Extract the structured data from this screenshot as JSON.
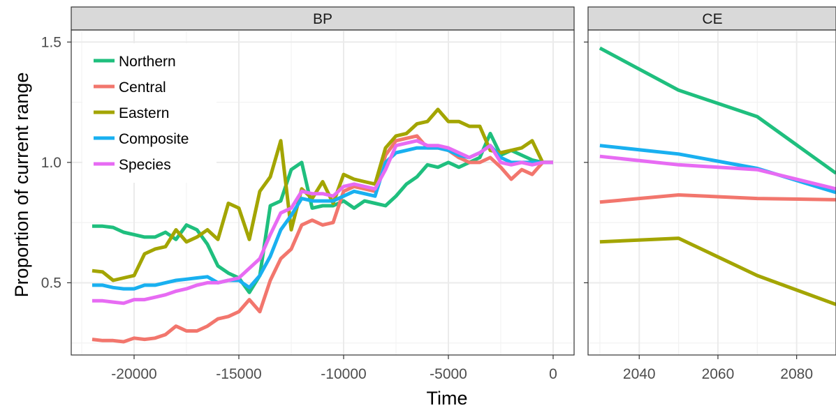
{
  "chart_data": {
    "type": "line",
    "xlabel": "Time",
    "ylabel": "Proportion of current range",
    "grid": true,
    "legend_position": "top-left",
    "y_ticks": [
      "0.5",
      "1.0",
      "1.5"
    ],
    "y_tick_values": [
      0.5,
      1.0,
      1.5
    ],
    "ylim": [
      0.2,
      1.55
    ],
    "series_names": [
      "Northern",
      "Central",
      "Eastern",
      "Composite",
      "Species"
    ],
    "colors": {
      "Northern": "#1FBF7E",
      "Central": "#F2766D",
      "Eastern": "#A3A500",
      "Composite": "#19B0F0",
      "Species": "#E76BF3"
    },
    "panels": [
      {
        "label": "BP",
        "xlim": [
          -23000,
          1000
        ],
        "x_ticks": [
          "-20000",
          "-15000",
          "-10000",
          "-5000",
          "0"
        ],
        "x_tick_values": [
          -20000,
          -15000,
          -10000,
          -5000,
          0
        ],
        "series": [
          {
            "name": "Northern",
            "x": [
              -22000,
              -21500,
              -21000,
              -20500,
              -20000,
              -19500,
              -19000,
              -18500,
              -18000,
              -17500,
              -17000,
              -16500,
              -16000,
              -15500,
              -15000,
              -14500,
              -14000,
              -13500,
              -13000,
              -12500,
              -12000,
              -11500,
              -11000,
              -10500,
              -10000,
              -9500,
              -9000,
              -8500,
              -8000,
              -7500,
              -7000,
              -6500,
              -6000,
              -5500,
              -5000,
              -4500,
              -4000,
              -3500,
              -3000,
              -2500,
              -2000,
              -1500,
              -1000,
              -500,
              0
            ],
            "y": [
              0.735,
              0.735,
              0.73,
              0.71,
              0.7,
              0.69,
              0.69,
              0.71,
              0.68,
              0.74,
              0.72,
              0.66,
              0.57,
              0.54,
              0.52,
              0.46,
              0.53,
              0.82,
              0.84,
              0.97,
              1.0,
              0.81,
              0.82,
              0.82,
              0.84,
              0.81,
              0.84,
              0.83,
              0.82,
              0.86,
              0.91,
              0.94,
              0.99,
              0.98,
              1.0,
              0.98,
              1.0,
              1.02,
              1.12,
              1.03,
              1.05,
              1.03,
              1.01,
              1.0,
              1.0
            ]
          },
          {
            "name": "Central",
            "x": [
              -22000,
              -21500,
              -21000,
              -20500,
              -20000,
              -19500,
              -19000,
              -18500,
              -18000,
              -17500,
              -17000,
              -16500,
              -16000,
              -15500,
              -15000,
              -14500,
              -14000,
              -13500,
              -13000,
              -12500,
              -12000,
              -11500,
              -11000,
              -10500,
              -10000,
              -9500,
              -9000,
              -8500,
              -8000,
              -7500,
              -7000,
              -6500,
              -6000,
              -5500,
              -5000,
              -4500,
              -4000,
              -3500,
              -3000,
              -2500,
              -2000,
              -1500,
              -1000,
              -500,
              0
            ],
            "y": [
              0.265,
              0.26,
              0.26,
              0.255,
              0.27,
              0.265,
              0.27,
              0.285,
              0.32,
              0.3,
              0.3,
              0.32,
              0.35,
              0.36,
              0.38,
              0.43,
              0.38,
              0.51,
              0.6,
              0.64,
              0.74,
              0.76,
              0.74,
              0.75,
              0.88,
              0.9,
              0.89,
              0.88,
              1.03,
              1.09,
              1.1,
              1.11,
              1.06,
              1.06,
              1.05,
              1.02,
              1.0,
              1.0,
              1.02,
              0.98,
              0.93,
              0.97,
              0.95,
              1.0,
              1.0
            ]
          },
          {
            "name": "Eastern",
            "x": [
              -22000,
              -21500,
              -21000,
              -20500,
              -20000,
              -19500,
              -19000,
              -18500,
              -18000,
              -17500,
              -17000,
              -16500,
              -16000,
              -15500,
              -15000,
              -14500,
              -14000,
              -13500,
              -13000,
              -12500,
              -12000,
              -11500,
              -11000,
              -10500,
              -10000,
              -9500,
              -9000,
              -8500,
              -8000,
              -7500,
              -7000,
              -6500,
              -6000,
              -5500,
              -5000,
              -4500,
              -4000,
              -3500,
              -3000,
              -2500,
              -2000,
              -1500,
              -1000,
              -500,
              0
            ],
            "y": [
              0.55,
              0.545,
              0.51,
              0.52,
              0.53,
              0.62,
              0.64,
              0.65,
              0.72,
              0.67,
              0.69,
              0.72,
              0.68,
              0.83,
              0.81,
              0.68,
              0.88,
              0.94,
              1.09,
              0.72,
              0.89,
              0.85,
              0.92,
              0.83,
              0.95,
              0.93,
              0.92,
              0.91,
              1.06,
              1.11,
              1.12,
              1.16,
              1.17,
              1.22,
              1.17,
              1.17,
              1.15,
              1.15,
              1.05,
              1.04,
              1.05,
              1.06,
              1.09,
              1.0,
              1.0
            ]
          },
          {
            "name": "Composite",
            "x": [
              -22000,
              -21500,
              -21000,
              -20500,
              -20000,
              -19500,
              -19000,
              -18500,
              -18000,
              -17500,
              -17000,
              -16500,
              -16000,
              -15500,
              -15000,
              -14500,
              -14000,
              -13500,
              -13000,
              -12500,
              -12000,
              -11500,
              -11000,
              -10500,
              -10000,
              -9500,
              -9000,
              -8500,
              -8000,
              -7500,
              -7000,
              -6500,
              -6000,
              -5500,
              -5000,
              -4500,
              -4000,
              -3500,
              -3000,
              -2500,
              -2000,
              -1500,
              -1000,
              -500,
              0
            ],
            "y": [
              0.49,
              0.49,
              0.48,
              0.475,
              0.475,
              0.49,
              0.49,
              0.5,
              0.51,
              0.515,
              0.52,
              0.525,
              0.5,
              0.51,
              0.51,
              0.48,
              0.53,
              0.61,
              0.72,
              0.78,
              0.85,
              0.84,
              0.84,
              0.84,
              0.86,
              0.88,
              0.87,
              0.86,
              1.0,
              1.04,
              1.05,
              1.06,
              1.06,
              1.06,
              1.05,
              1.03,
              1.02,
              1.04,
              1.07,
              1.02,
              1.0,
              1.0,
              1.0,
              1.0,
              1.0
            ]
          },
          {
            "name": "Species",
            "x": [
              -22000,
              -21500,
              -21000,
              -20500,
              -20000,
              -19500,
              -19000,
              -18500,
              -18000,
              -17500,
              -17000,
              -16500,
              -16000,
              -15500,
              -15000,
              -14500,
              -14000,
              -13500,
              -13000,
              -12500,
              -12000,
              -11500,
              -11000,
              -10500,
              -10000,
              -9500,
              -9000,
              -8500,
              -8000,
              -7500,
              -7000,
              -6500,
              -6000,
              -5500,
              -5000,
              -4500,
              -4000,
              -3500,
              -3000,
              -2500,
              -2000,
              -1500,
              -1000,
              -500,
              0
            ],
            "y": [
              0.425,
              0.425,
              0.42,
              0.415,
              0.43,
              0.43,
              0.44,
              0.45,
              0.465,
              0.475,
              0.49,
              0.5,
              0.5,
              0.51,
              0.52,
              0.56,
              0.6,
              0.7,
              0.79,
              0.81,
              0.88,
              0.87,
              0.87,
              0.86,
              0.9,
              0.91,
              0.9,
              0.89,
              0.97,
              1.07,
              1.08,
              1.09,
              1.07,
              1.07,
              1.06,
              1.04,
              1.02,
              1.04,
              1.07,
              1.0,
              0.99,
              1.0,
              0.99,
              1.0,
              1.0
            ]
          }
        ]
      },
      {
        "label": "CE",
        "xlim": [
          2027,
          2090
        ],
        "x_ticks": [
          "2040",
          "2060",
          "2080"
        ],
        "x_tick_values": [
          2040,
          2060,
          2080
        ],
        "series": [
          {
            "name": "Northern",
            "x": [
              2030,
              2050,
              2070,
              2090
            ],
            "y": [
              1.475,
              1.3,
              1.19,
              0.955
            ]
          },
          {
            "name": "Central",
            "x": [
              2030,
              2050,
              2070,
              2090
            ],
            "y": [
              0.835,
              0.865,
              0.85,
              0.845
            ]
          },
          {
            "name": "Eastern",
            "x": [
              2030,
              2050,
              2070,
              2090
            ],
            "y": [
              0.67,
              0.685,
              0.53,
              0.41
            ]
          },
          {
            "name": "Composite",
            "x": [
              2030,
              2050,
              2070,
              2090
            ],
            "y": [
              1.07,
              1.035,
              0.975,
              0.875
            ]
          },
          {
            "name": "Species",
            "x": [
              2030,
              2050,
              2070,
              2090
            ],
            "y": [
              1.025,
              0.99,
              0.97,
              0.89
            ]
          }
        ]
      }
    ]
  }
}
